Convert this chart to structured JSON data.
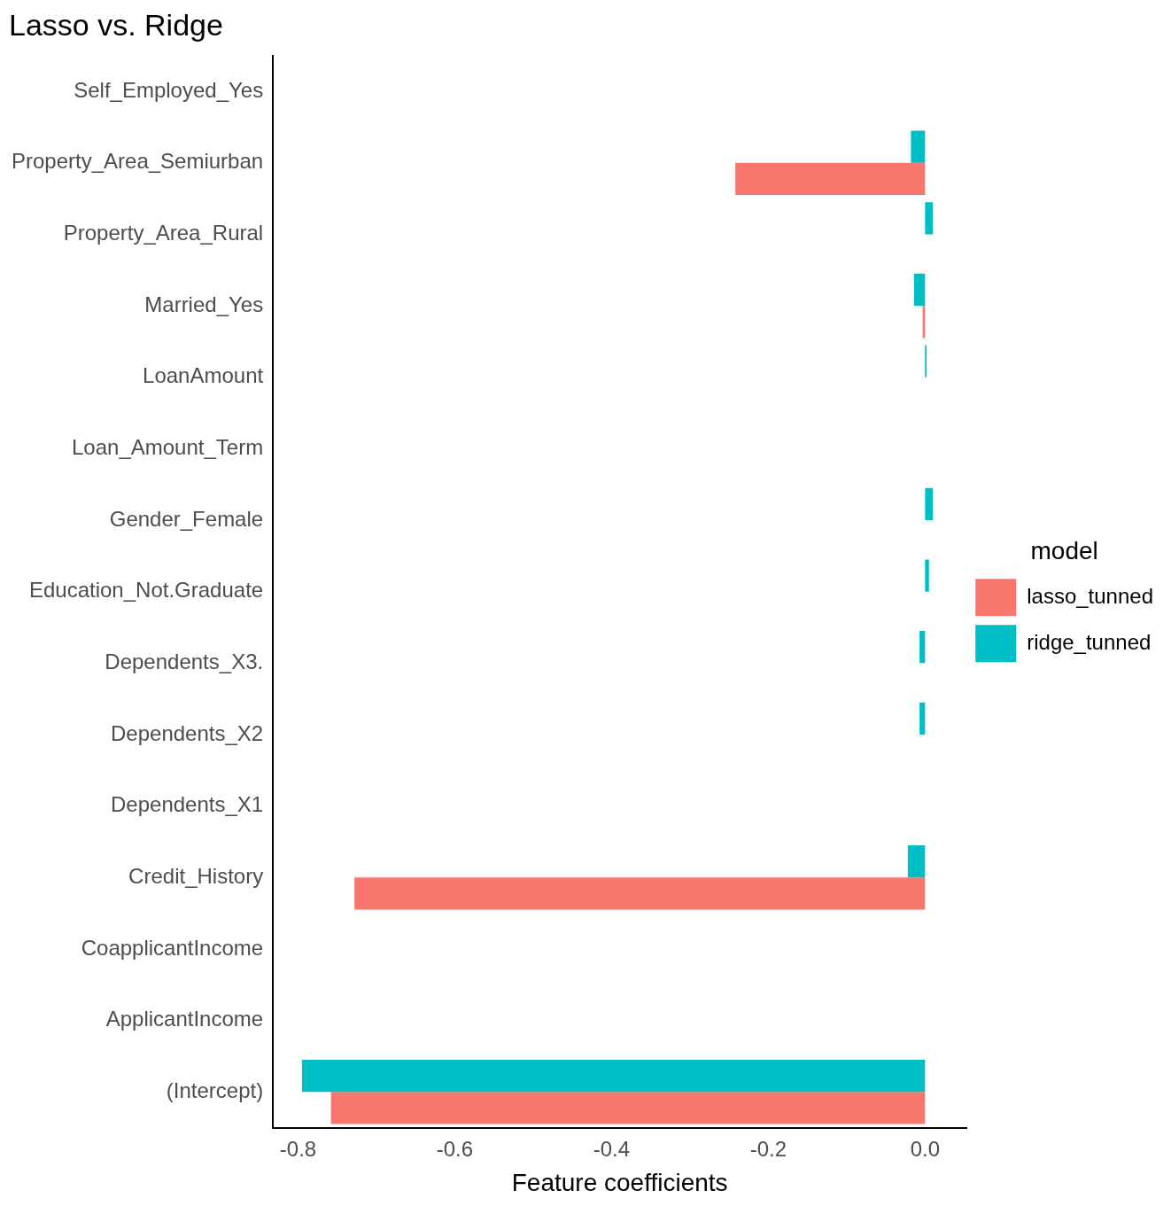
{
  "chart_data": {
    "type": "bar",
    "orientation": "horizontal",
    "title": "Lasso vs. Ridge",
    "xlabel": "Feature coefficients",
    "legend_title": "model",
    "legend": "right",
    "grid": false,
    "categories": [
      "Self_Employed_Yes",
      "Property_Area_Semiurban",
      "Property_Area_Rural",
      "Married_Yes",
      "LoanAmount",
      "Loan_Amount_Term",
      "Gender_Female",
      "Education_Not.Graduate",
      "Dependents_X3.",
      "Dependents_X2",
      "Dependents_X1",
      "Credit_History",
      "CoapplicantIncome",
      "ApplicantIncome",
      "(Intercept)"
    ],
    "series": [
      {
        "name": "ridge_tunned",
        "color": "#00bfc4",
        "values": [
          0,
          -0.018,
          0.01,
          -0.014,
          0.002,
          0,
          0.01,
          0.005,
          -0.007,
          -0.007,
          0,
          -0.022,
          0,
          0,
          -0.795
        ]
      },
      {
        "name": "lasso_tunned",
        "color": "#f8766d",
        "values": [
          0,
          -0.242,
          0,
          -0.003,
          0,
          0,
          0,
          0,
          0,
          0,
          0,
          -0.728,
          0,
          0,
          -0.758
        ]
      }
    ],
    "xlim": [
      -0.832,
      0.053
    ],
    "xticks": [
      {
        "value": -0.8,
        "label": "-0.8"
      },
      {
        "value": -0.6,
        "label": "-0.6"
      },
      {
        "value": -0.4,
        "label": "-0.4"
      },
      {
        "value": -0.2,
        "label": "-0.2"
      },
      {
        "value": 0,
        "label": "0.0"
      }
    ]
  }
}
